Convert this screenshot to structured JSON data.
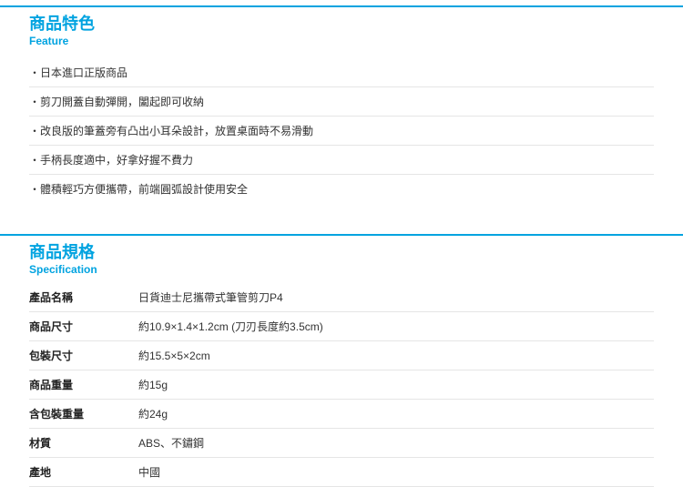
{
  "accent_color": "#00a3e0",
  "border_color": "#e5e5e5",
  "text_color": "#333333",
  "label_color": "#222222",
  "feature_section": {
    "title": "商品特色",
    "subtitle": "Feature",
    "items": [
      "・日本進口正版商品",
      "・剪刀開蓋自動彈開，闔起即可收納",
      "・改良版的筆蓋旁有凸出小耳朵設計，放置桌面時不易滑動",
      "・手柄長度適中，好拿好握不費力",
      "・體積輕巧方便攜帶，前端圓弧設計使用安全"
    ]
  },
  "spec_section": {
    "title": "商品規格",
    "subtitle": "Specification",
    "rows": [
      {
        "label": "產品名稱",
        "value": "日貨迪士尼攜帶式筆管剪刀P4"
      },
      {
        "label": "商品尺寸",
        "value": "約10.9×1.4×1.2cm (刀刃長度約3.5cm)"
      },
      {
        "label": "包裝尺寸",
        "value": "約15.5×5×2cm"
      },
      {
        "label": "商品重量",
        "value": "約15g"
      },
      {
        "label": "含包裝重量",
        "value": "約24g"
      },
      {
        "label": "材質",
        "value": "ABS、不鏽鋼"
      },
      {
        "label": "產地",
        "value": "中國"
      }
    ]
  }
}
